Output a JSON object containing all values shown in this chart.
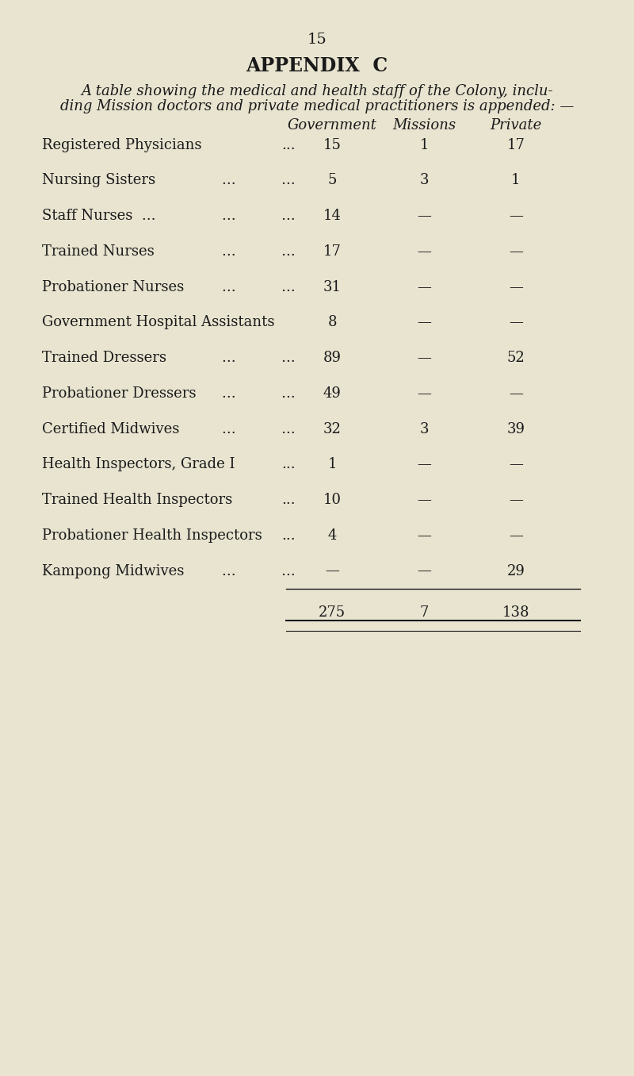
{
  "page_number": "15",
  "title": "APPENDIX  C",
  "intro_text_line1": "A table showing the medical and health staff of the Colony, inclu-",
  "intro_text_line2": "ding Mission doctors and private medical practitioners is appended: —",
  "col_headers": [
    "Government",
    "Missions",
    "Private"
  ],
  "rows": [
    {
      "label": "Registered Physicians",
      "dots": "...",
      "gov": "15",
      "mis": "1",
      "prv": "17"
    },
    {
      "label": "Nursing Sisters",
      "dots": "...          ...",
      "gov": "5",
      "mis": "3",
      "prv": "1"
    },
    {
      "label": "Staff Nurses  ...",
      "dots": "...          ...",
      "gov": "14",
      "mis": "—",
      "prv": "—"
    },
    {
      "label": "Trained Nurses",
      "dots": "...          ...",
      "gov": "17",
      "mis": "—",
      "prv": "—"
    },
    {
      "label": "Probationer Nurses",
      "dots": "...          ...",
      "gov": "31",
      "mis": "—",
      "prv": "—"
    },
    {
      "label": "Government Hospital Assistants",
      "dots": "",
      "gov": "8",
      "mis": "—",
      "prv": "—"
    },
    {
      "label": "Trained Dressers",
      "dots": "...          ...",
      "gov": "89",
      "mis": "—",
      "prv": "52"
    },
    {
      "label": "Probationer Dressers",
      "dots": "...          ...",
      "gov": "49",
      "mis": "—",
      "prv": "—"
    },
    {
      "label": "Certified Midwives",
      "dots": "...          ...",
      "gov": "32",
      "mis": "3",
      "prv": "39"
    },
    {
      "label": "Health Inspectors, Grade I",
      "dots": "...",
      "gov": "1",
      "mis": "—",
      "prv": "—"
    },
    {
      "label": "Trained Health Inspectors",
      "dots": "...",
      "gov": "10",
      "mis": "—",
      "prv": "—"
    },
    {
      "label": "Probationer Health Inspectors",
      "dots": "...",
      "gov": "4",
      "mis": "—",
      "prv": "—"
    },
    {
      "label": "Kampong Midwives",
      "dots": "...          ...",
      "gov": "—",
      "mis": "—",
      "prv": "29"
    }
  ],
  "totals": [
    "275",
    "7",
    "138"
  ],
  "bg_color": "#e8e4d0",
  "text_color": "#1a1a1a",
  "font_size": 13,
  "header_font_size": 13,
  "title_font_size": 17,
  "page_num_font_size": 14
}
